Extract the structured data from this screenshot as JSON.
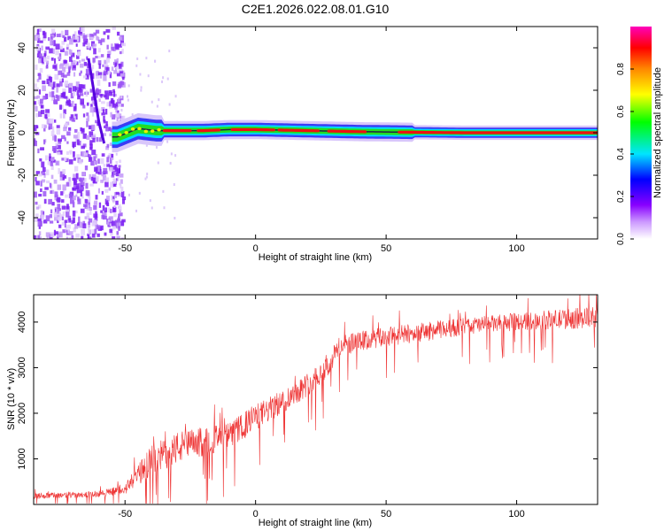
{
  "title": "C2E1.2026.022.08.01.G10",
  "spectrogram": {
    "chart_data": {
      "type": "heatmap",
      "xlabel": "Height of straight line (km)",
      "ylabel": "Frequency (Hz)",
      "xlim": [
        -85,
        131
      ],
      "ylim": [
        -50,
        50
      ],
      "xticks": [
        -50,
        0,
        50,
        100
      ],
      "yticks": [
        -40,
        -20,
        0,
        20,
        40
      ],
      "ridge": [
        {
          "x": -63,
          "f": 22
        },
        {
          "x": -58,
          "f": 0
        },
        {
          "x": -53,
          "f": -2
        },
        {
          "x": -45,
          "f": 2
        },
        {
          "x": -38,
          "f": 1
        },
        {
          "x": -20,
          "f": 1
        },
        {
          "x": -10,
          "f": 1.5
        },
        {
          "x": 0,
          "f": 1.5
        },
        {
          "x": 20,
          "f": 1
        },
        {
          "x": 40,
          "f": 0.5
        },
        {
          "x": 80,
          "f": 0
        },
        {
          "x": 131,
          "f": 0
        }
      ],
      "noise_region_x": [
        -85,
        -55
      ]
    },
    "colorbar": {
      "label": "Normalized spectral amplitude",
      "range": [
        0,
        1
      ],
      "ticks": [
        "0.0",
        "0.2",
        "0.4",
        "0.6",
        "0.8"
      ],
      "colors": [
        "#8800ff",
        "#0000ff",
        "#00e5ff",
        "#00ff00",
        "#ffff00",
        "#ff8800",
        "#ff0000",
        "#ff00bb"
      ]
    }
  },
  "snr": {
    "chart_data": {
      "type": "line",
      "xlabel": "Height of straight line (km)",
      "ylabel": "SNR (10 * v/v)",
      "xlim": [
        -85,
        131
      ],
      "ylim": [
        0,
        4600
      ],
      "xticks": [
        -50,
        0,
        50,
        100
      ],
      "yticks": [
        1000,
        2000,
        3000,
        4000
      ],
      "color": "#ee3333",
      "trend": [
        {
          "x": -85,
          "lo": 50,
          "hi": 250
        },
        {
          "x": -60,
          "lo": 80,
          "hi": 300
        },
        {
          "x": -50,
          "lo": 100,
          "hi": 450
        },
        {
          "x": -40,
          "lo": 250,
          "hi": 1300
        },
        {
          "x": -30,
          "lo": 500,
          "hi": 1600
        },
        {
          "x": -10,
          "lo": 900,
          "hi": 1800
        },
        {
          "x": 0,
          "lo": 1300,
          "hi": 2200
        },
        {
          "x": 10,
          "lo": 1700,
          "hi": 2500
        },
        {
          "x": 20,
          "lo": 2100,
          "hi": 2900
        },
        {
          "x": 28,
          "lo": 2500,
          "hi": 3300
        },
        {
          "x": 32,
          "lo": 3000,
          "hi": 3700
        },
        {
          "x": 50,
          "lo": 3200,
          "hi": 3900
        },
        {
          "x": 80,
          "lo": 3500,
          "hi": 4100
        },
        {
          "x": 100,
          "lo": 3600,
          "hi": 4200
        },
        {
          "x": 131,
          "lo": 3600,
          "hi": 4350
        }
      ]
    }
  }
}
